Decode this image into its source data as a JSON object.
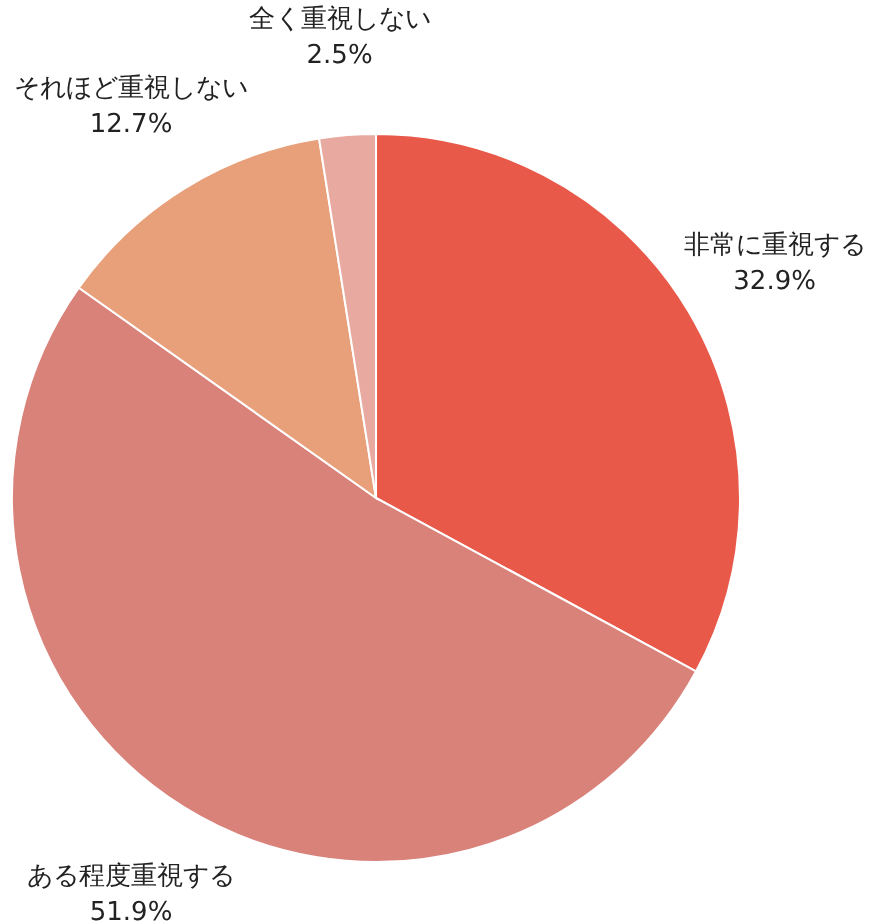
{
  "chart_data": {
    "type": "pie",
    "categories": [
      "非常に重視する",
      "ある程度重視する",
      "それほど重視しない",
      "全く重視しない"
    ],
    "values": [
      32.9,
      51.9,
      12.7,
      2.5
    ],
    "value_labels": [
      "32.9%",
      "51.9%",
      "12.7%",
      "2.5%"
    ],
    "colors": [
      "#e8594a",
      "#d9827a",
      "#e8a07a",
      "#e8aaa0"
    ]
  }
}
